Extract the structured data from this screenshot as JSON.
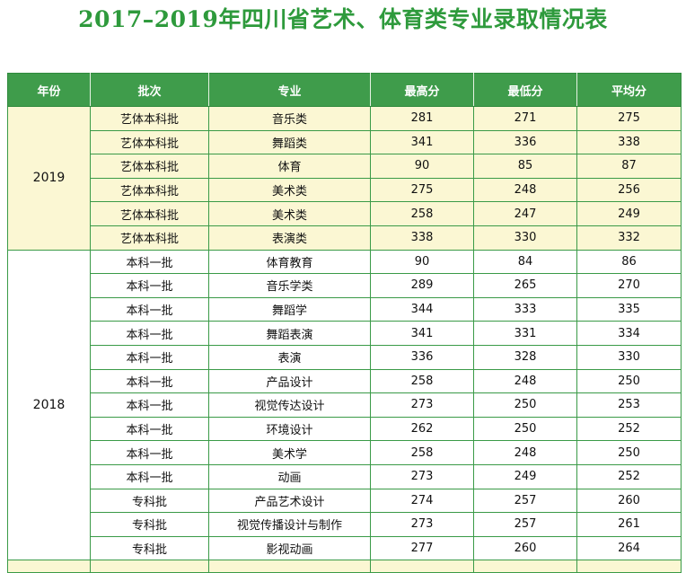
{
  "title": "2017–2019年四川省艺术、体育类专业录取情况表",
  "headers": {
    "year": "年份",
    "batch": "批次",
    "major": "专业",
    "max": "最高分",
    "min": "最低分",
    "avg": "平均分"
  },
  "groups": [
    {
      "year": "2019",
      "rows": [
        {
          "batch": "艺体本科批",
          "major": "音乐类",
          "max": "281",
          "min": "271",
          "avg": "275"
        },
        {
          "batch": "艺体本科批",
          "major": "舞蹈类",
          "max": "341",
          "min": "336",
          "avg": "338"
        },
        {
          "batch": "艺体本科批",
          "major": "体育",
          "max": "90",
          "min": "85",
          "avg": "87"
        },
        {
          "batch": "艺体本科批",
          "major": "美术类",
          "max": "275",
          "min": "248",
          "avg": "256"
        },
        {
          "batch": "艺体本科批",
          "major": "美术类",
          "max": "258",
          "min": "247",
          "avg": "249"
        },
        {
          "batch": "艺体本科批",
          "major": "表演类",
          "max": "338",
          "min": "330",
          "avg": "332"
        }
      ]
    },
    {
      "year": "2018",
      "rows": [
        {
          "batch": "本科一批",
          "major": "体育教育",
          "max": "90",
          "min": "84",
          "avg": "86"
        },
        {
          "batch": "本科一批",
          "major": "音乐学类",
          "max": "289",
          "min": "265",
          "avg": "270"
        },
        {
          "batch": "本科一批",
          "major": "舞蹈学",
          "max": "344",
          "min": "333",
          "avg": "335"
        },
        {
          "batch": "本科一批",
          "major": "舞蹈表演",
          "max": "341",
          "min": "331",
          "avg": "334"
        },
        {
          "batch": "本科一批",
          "major": "表演",
          "max": "336",
          "min": "328",
          "avg": "330"
        },
        {
          "batch": "本科一批",
          "major": "产品设计",
          "max": "258",
          "min": "248",
          "avg": "250"
        },
        {
          "batch": "本科一批",
          "major": "视觉传达设计",
          "max": "273",
          "min": "250",
          "avg": "253"
        },
        {
          "batch": "本科一批",
          "major": "环境设计",
          "max": "262",
          "min": "250",
          "avg": "252"
        },
        {
          "batch": "本科一批",
          "major": "美术学",
          "max": "258",
          "min": "248",
          "avg": "250"
        },
        {
          "batch": "本科一批",
          "major": "动画",
          "max": "273",
          "min": "249",
          "avg": "252"
        },
        {
          "batch": "专科批",
          "major": "产品艺术设计",
          "max": "274",
          "min": "257",
          "avg": "260"
        },
        {
          "batch": "专科批",
          "major": "视觉传播设计与制作",
          "max": "273",
          "min": "257",
          "avg": "261"
        },
        {
          "batch": "专科批",
          "major": "影视动画",
          "max": "277",
          "min": "260",
          "avg": "264"
        }
      ]
    }
  ]
}
